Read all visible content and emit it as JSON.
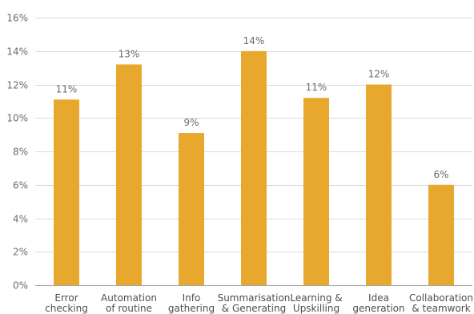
{
  "chart_data": {
    "type": "bar",
    "categories": [
      [
        "Error",
        "checking"
      ],
      [
        "Automation",
        "of routine"
      ],
      [
        "Info",
        "gathering"
      ],
      [
        "Summarisation",
        "& Generating"
      ],
      [
        "Learning &",
        "Upskilling"
      ],
      [
        "Idea",
        "generation"
      ],
      [
        "Collaboration",
        "& teamwork"
      ]
    ],
    "values": [
      11.1,
      13.2,
      9.1,
      14.0,
      11.2,
      12.0,
      6.0
    ],
    "data_labels": [
      "11%",
      "13%",
      "9%",
      "14%",
      "11%",
      "12%",
      "6%"
    ],
    "ylim": [
      0,
      16
    ],
    "yticks": [
      0,
      2,
      4,
      6,
      8,
      10,
      12,
      14,
      16
    ],
    "ytick_labels": [
      "0%",
      "2%",
      "4%",
      "6%",
      "8%",
      "10%",
      "12%",
      "14%",
      "16%"
    ],
    "grid": true,
    "bar_color": "#e8a82e"
  }
}
